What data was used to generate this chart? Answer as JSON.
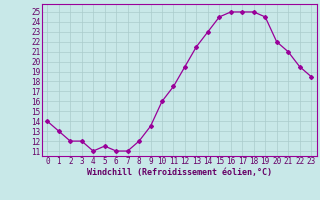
{
  "x": [
    0,
    1,
    2,
    3,
    4,
    5,
    6,
    7,
    8,
    9,
    10,
    11,
    12,
    13,
    14,
    15,
    16,
    17,
    18,
    19,
    20,
    21,
    22,
    23
  ],
  "y": [
    14,
    13,
    12,
    12,
    11,
    11.5,
    11,
    11,
    12,
    13.5,
    16,
    17.5,
    19.5,
    21.5,
    23,
    24.5,
    25,
    25,
    25,
    24.5,
    22,
    21,
    19.5,
    18.5
  ],
  "line_color": "#990099",
  "marker": "D",
  "marker_size": 2.0,
  "bg_color": "#c8e8e8",
  "grid_color": "#aacccc",
  "xlabel": "Windchill (Refroidissement éolien,°C)",
  "xlabel_color": "#660066",
  "xlabel_fontsize": 6.0,
  "ylabel_ticks": [
    11,
    12,
    13,
    14,
    15,
    16,
    17,
    18,
    19,
    20,
    21,
    22,
    23,
    24,
    25
  ],
  "ylim": [
    10.5,
    25.8
  ],
  "xlim": [
    -0.5,
    23.5
  ],
  "tick_color": "#660066",
  "tick_fontsize": 5.5,
  "border_color": "#990099",
  "linewidth": 0.9
}
